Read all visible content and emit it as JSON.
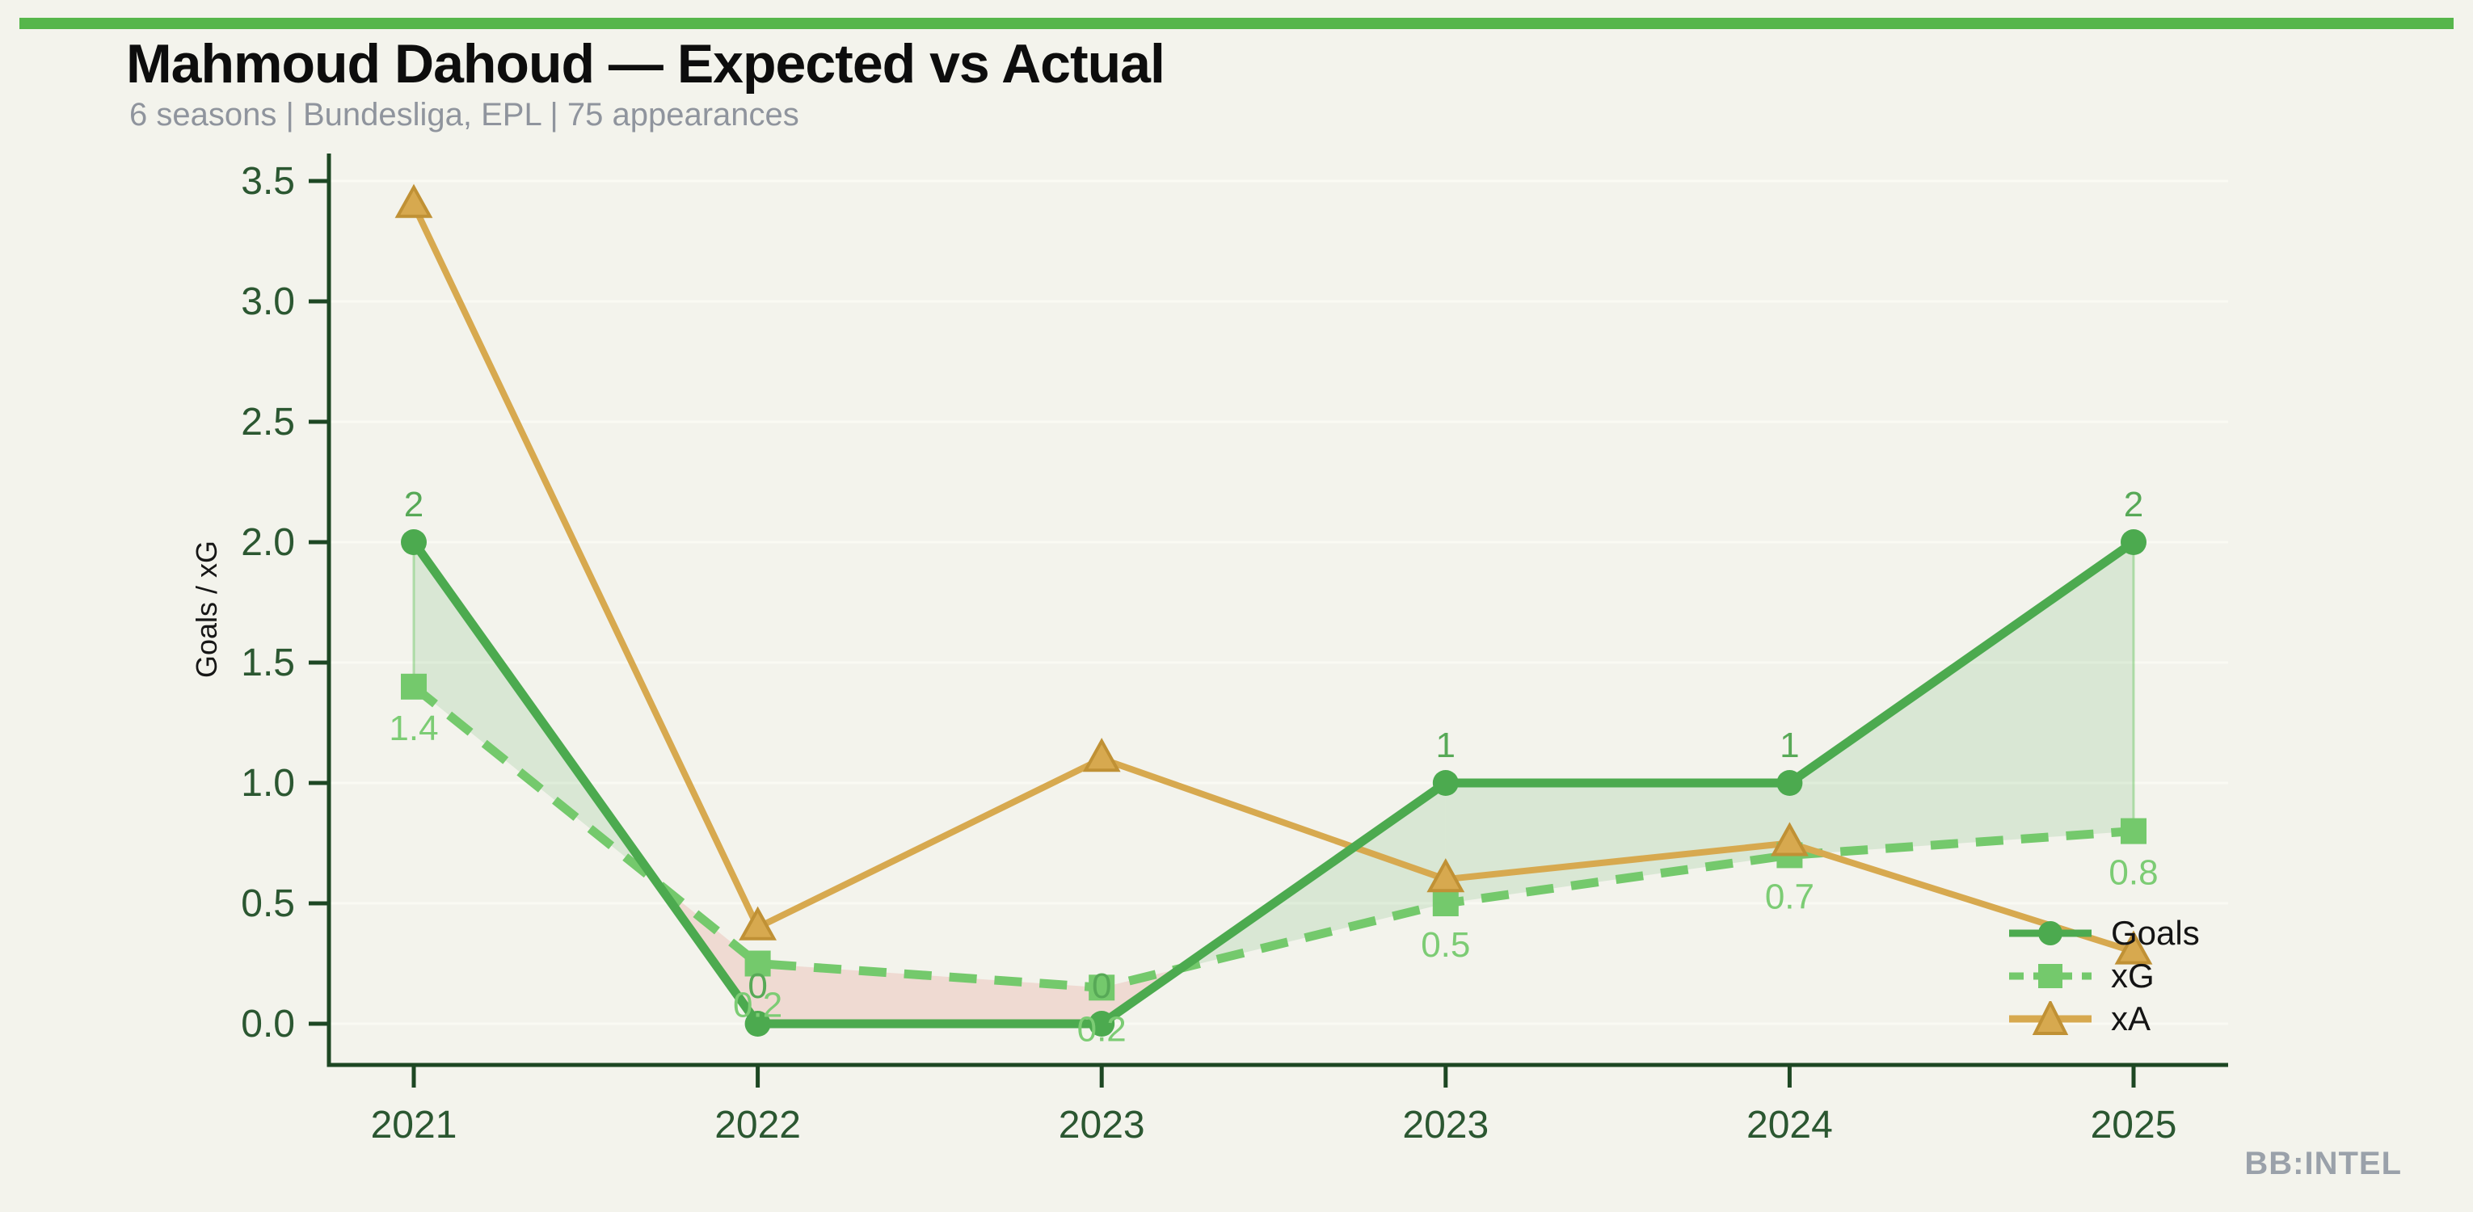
{
  "page": {
    "background_color": "#f3f3ec",
    "accent_bar_color": "#56b64b",
    "title": "Mahmoud Dahoud — Expected vs Actual",
    "subtitle": "6 seasons | Bundesliga, EPL | 75 appearances",
    "watermark": "BB:INTEL"
  },
  "chart_data": {
    "type": "line",
    "title": "Mahmoud Dahoud — Expected vs Actual",
    "subtitle": "6 seasons | Bundesliga, EPL | 75 appearances",
    "categories": [
      "2021",
      "2022",
      "2023",
      "2023",
      "2024",
      "2025"
    ],
    "xlabel": "",
    "ylabel": "Goals / xG",
    "ylim": [
      0,
      3.5
    ],
    "yticks": [
      0,
      0.5,
      1,
      1.5,
      2,
      2.5,
      3,
      3.5
    ],
    "ytick_labels": [
      "0.0",
      "0.5",
      "1.0",
      "1.5",
      "2.0",
      "2.5",
      "3.0",
      "3.5"
    ],
    "grid": "faint horizontal gridlines at each y tick",
    "legend_position": "lower-right",
    "axis_color": "#1d4723",
    "tick_label_color": "#2b5731",
    "series": [
      {
        "name": "Goals",
        "color": "#4caa4f",
        "marker": "circle",
        "line_style": "solid",
        "values": [
          2,
          0,
          0,
          1,
          1,
          2
        ],
        "point_labels": [
          "2",
          "0",
          "0",
          "1",
          "1",
          "2"
        ],
        "label_color": "#57a957"
      },
      {
        "name": "xG",
        "color": "#74c96c",
        "marker": "square",
        "line_style": "dashed",
        "values": [
          1.4,
          0.25,
          0.15,
          0.5,
          0.7,
          0.8
        ],
        "point_labels": [
          "1.4",
          "0.2",
          "0.2",
          "0.5",
          "0.7",
          "0.8"
        ],
        "label_color": "#7ccc74"
      },
      {
        "name": "xA",
        "color": "#d7a94f",
        "marker": "triangle",
        "line_style": "solid",
        "values": [
          3.4,
          0.4,
          1.1,
          0.6,
          0.75,
          0.3
        ],
        "point_labels": [],
        "marker_edge_color": "#c09135"
      }
    ],
    "fill_between": {
      "series_a": "Goals",
      "series_b": "xG",
      "overperform_color": "#4caa4f",
      "underperform_color": "#dd6a5e"
    }
  }
}
